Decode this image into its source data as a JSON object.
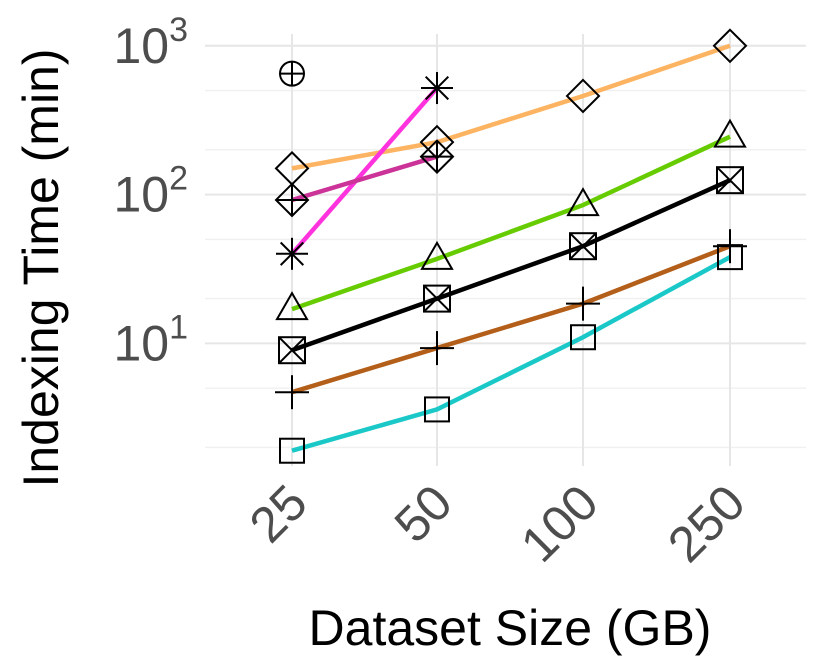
{
  "chart_data": {
    "type": "line",
    "xlabel": "Dataset Size (GB)",
    "ylabel": "Indexing Time (min)",
    "categories": [
      "25",
      "50",
      "100",
      "250"
    ],
    "y_scale": "log10",
    "ylim": [
      1.5,
      1200
    ],
    "y_ticks": [
      {
        "value": 10,
        "base": "10",
        "exp": "1"
      },
      {
        "value": 100,
        "base": "10",
        "exp": "2"
      },
      {
        "value": 1000,
        "base": "10",
        "exp": "3"
      }
    ],
    "grid": true,
    "legend": "none",
    "series": [
      {
        "marker": "circle-plus",
        "color": "#000000",
        "values": [
          650,
          null,
          null,
          null
        ]
      },
      {
        "marker": "diamond",
        "color": "#fdb462",
        "values": [
          150,
          225,
          460,
          1000
        ]
      },
      {
        "marker": "asterisk",
        "color": "#ff33dd",
        "values": [
          40,
          520,
          null,
          null
        ]
      },
      {
        "marker": "diamond-plus",
        "color": "#cc3399",
        "values": [
          92,
          180,
          null,
          null
        ]
      },
      {
        "marker": "triangle",
        "color": "#66cc00",
        "values": [
          17,
          37,
          85,
          245
        ]
      },
      {
        "marker": "square-x",
        "color": "#000000",
        "values": [
          9,
          20,
          45,
          125
        ]
      },
      {
        "marker": "plus",
        "color": "#b35f1a",
        "values": [
          4.7,
          9.3,
          18.5,
          45
        ]
      },
      {
        "marker": "square",
        "color": "#1ac8c8",
        "values": [
          1.9,
          3.6,
          11,
          38
        ]
      }
    ]
  }
}
